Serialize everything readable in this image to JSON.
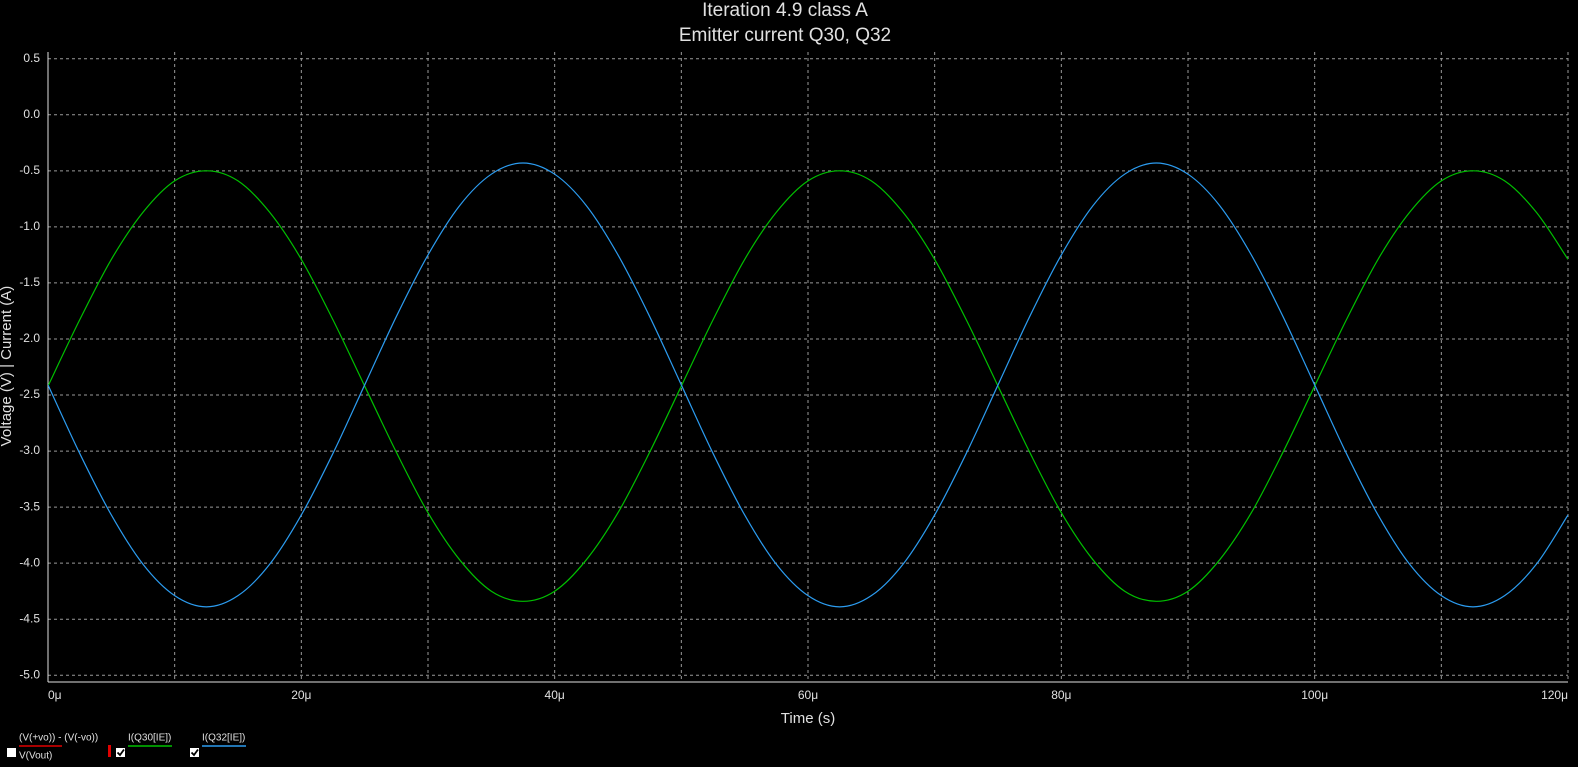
{
  "chart_data": {
    "type": "line",
    "title": "Iteration 4.9 class A",
    "subtitle": "Emitter current Q30, Q32",
    "x_label": "Time (s)",
    "y_label": "Voltage (V) | Current (A)",
    "x": [
      0,
      2.5,
      5,
      7.5,
      10,
      12.5,
      15,
      17.5,
      20,
      22.5,
      25,
      27.5,
      30,
      32.5,
      35,
      37.5,
      40,
      42.5,
      45,
      47.5,
      50,
      52.5,
      55,
      57.5,
      60,
      62.5,
      65,
      67.5,
      70,
      72.5,
      75,
      77.5,
      80,
      82.5,
      85,
      87.5,
      90,
      92.5,
      95,
      97.5,
      100,
      102.5,
      105,
      107.5,
      110,
      112.5,
      115,
      117.5,
      120
    ],
    "series": [
      {
        "name": "I(Q30[IE])",
        "color": "#00c000",
        "checked": true,
        "values": [
          -2.42,
          -1.83,
          -1.29,
          -0.87,
          -0.59,
          -0.5,
          -0.59,
          -0.87,
          -1.29,
          -1.83,
          -2.42,
          -3.01,
          -3.55,
          -3.97,
          -4.25,
          -4.34,
          -4.25,
          -3.97,
          -3.55,
          -3.01,
          -2.42,
          -1.83,
          -1.29,
          -0.87,
          -0.59,
          -0.5,
          -0.59,
          -0.87,
          -1.29,
          -1.83,
          -2.42,
          -3.01,
          -3.55,
          -3.97,
          -4.25,
          -4.34,
          -4.25,
          -3.97,
          -3.55,
          -3.01,
          -2.42,
          -1.83,
          -1.29,
          -0.87,
          -0.59,
          -0.5,
          -0.59,
          -0.87,
          -1.29
        ]
      },
      {
        "name": "I(Q32[IE])",
        "color": "#2c9cf0",
        "checked": true,
        "values": [
          -2.41,
          -3.02,
          -3.57,
          -4.01,
          -4.29,
          -4.39,
          -4.29,
          -4.01,
          -3.57,
          -3.02,
          -2.41,
          -1.8,
          -1.25,
          -0.81,
          -0.53,
          -0.43,
          -0.53,
          -0.81,
          -1.25,
          -1.8,
          -2.41,
          -3.02,
          -3.57,
          -4.01,
          -4.29,
          -4.39,
          -4.29,
          -4.01,
          -3.57,
          -3.02,
          -2.41,
          -1.8,
          -1.25,
          -0.81,
          -0.53,
          -0.43,
          -0.53,
          -0.81,
          -1.25,
          -1.8,
          -2.41,
          -3.02,
          -3.57,
          -4.01,
          -4.29,
          -4.39,
          -4.29,
          -4.01,
          -3.57
        ]
      }
    ],
    "legend_other": {
      "names": [
        "(V(+vo)) - (V(-vo))",
        "V(Vout)"
      ],
      "color": "#e00000",
      "checked": false
    },
    "xlim": [
      0,
      120
    ],
    "xticks": [
      {
        "value": 0,
        "label": "0μ"
      },
      {
        "value": 20,
        "label": "20μ"
      },
      {
        "value": 40,
        "label": "40μ"
      },
      {
        "value": 60,
        "label": "60μ"
      },
      {
        "value": 80,
        "label": "80μ"
      },
      {
        "value": 100,
        "label": "100μ"
      },
      {
        "value": 120,
        "label": "120μ"
      }
    ],
    "minor_xticks": [
      10,
      30,
      50,
      70,
      90,
      110
    ],
    "ylim": [
      -5.06,
      0.56
    ],
    "yticks": [
      0.5,
      {
        "value": 0,
        "label": "0.0"
      },
      -0.5,
      {
        "value": -1,
        "label": "-1.0"
      },
      -1.5,
      {
        "value": -2,
        "label": "-2.0"
      },
      -2.5,
      {
        "value": -3,
        "label": "-3.0"
      },
      -3.5,
      {
        "value": -4,
        "label": "-4.0"
      },
      -4.5,
      {
        "value": -5,
        "label": "-5.0"
      }
    ],
    "grid": true
  }
}
